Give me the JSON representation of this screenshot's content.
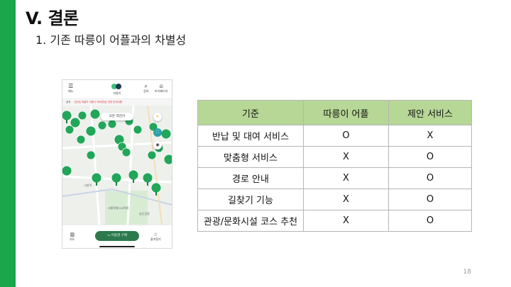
{
  "slide": {
    "title": "V. 결론",
    "subtitle": "1. 기존 따릉이 어플과의 차별성",
    "page_number": "18",
    "accent_color": "#1aa64a"
  },
  "app": {
    "header": {
      "menu_label": "메뉴",
      "logo_label": "따릉이",
      "search_label": "검색",
      "mypage_label": "마이페이지"
    },
    "notice": {
      "tag": "공지",
      "text": "[안내] 따릉이 이용시 대여/반납 관련 안내사항"
    },
    "map": {
      "filter_button": "모든 자전거",
      "labels": [
        "서울역",
        "시청역",
        "명동역",
        "서울특별시교육청",
        "남산공원"
      ]
    },
    "bottom_nav": {
      "map_label": "지도",
      "buy_button": "이용권 구매",
      "favorites_label": "즐겨찾기"
    }
  },
  "table": {
    "headers": [
      "기준",
      "따릉이 어플",
      "제안 서비스"
    ],
    "rows": [
      [
        "반납 및 대여 서비스",
        "O",
        "X"
      ],
      [
        "맞춤형 서비스",
        "X",
        "O"
      ],
      [
        "경로 안내",
        "X",
        "O"
      ],
      [
        "길찾기 기능",
        "X",
        "O"
      ],
      [
        "관광/문화시설 코스 추천",
        "X",
        "O"
      ]
    ],
    "header_color": "#b6d795"
  },
  "icons": [
    "menu-icon",
    "search-icon",
    "user-icon",
    "map-icon",
    "ticket-icon",
    "star-icon",
    "tree-pin-icon"
  ]
}
